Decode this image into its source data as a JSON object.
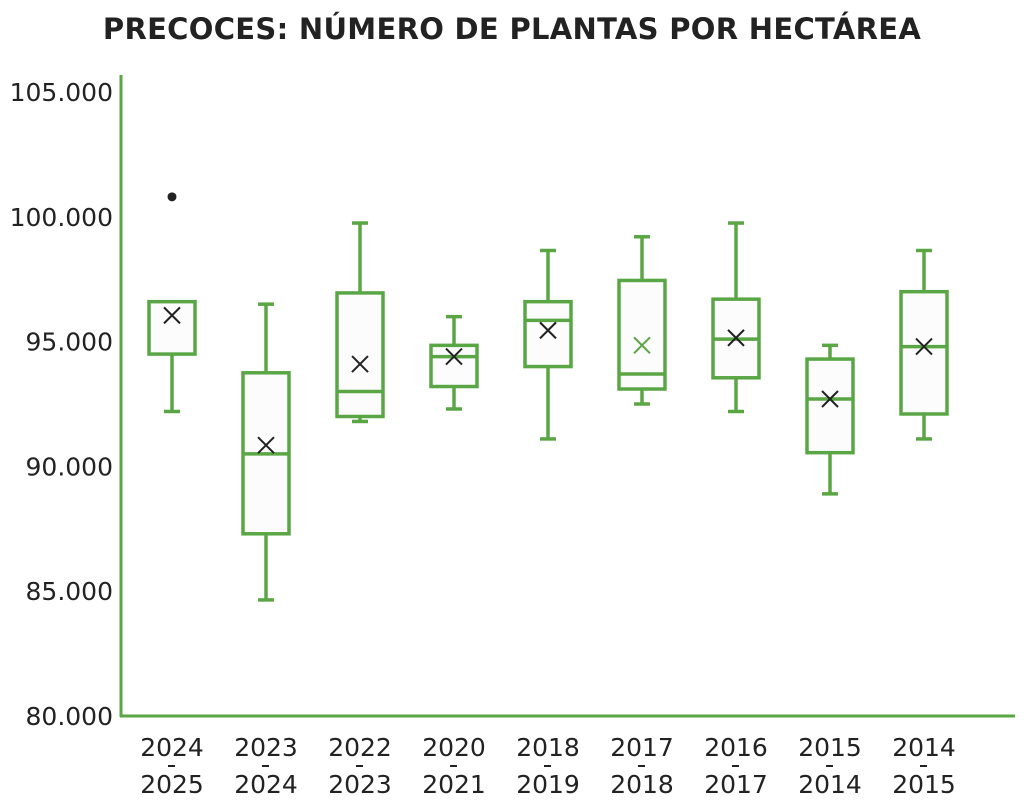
{
  "chart_data": {
    "type": "box",
    "title": "PRECOCES: NÚMERO DE PLANTAS POR HECTÁREA",
    "xlabel": "",
    "ylabel": "",
    "ylim": [
      80000,
      105000
    ],
    "yticks": [
      80000,
      85000,
      90000,
      95000,
      100000,
      105000
    ],
    "ytick_labels": [
      "80.000",
      "85.000",
      "90.000",
      "95.000",
      "100.000",
      "105.000"
    ],
    "grid": false,
    "color": "#5aa645",
    "categories": [
      "2024-2025",
      "2023-2024",
      "2022-2023",
      "2020-2021",
      "2018-2019",
      "2017-2018",
      "2016-2017",
      "2015-2014",
      "2014-2015"
    ],
    "boxes": [
      {
        "min": 92200,
        "q1": 94500,
        "median": 96600,
        "q3": 96600,
        "max": 96600,
        "mean": 96050,
        "outliers": [
          100800
        ]
      },
      {
        "min": 84650,
        "q1": 87300,
        "median": 90500,
        "q3": 93750,
        "max": 96500,
        "mean": 90850,
        "outliers": []
      },
      {
        "min": 91800,
        "q1": 92000,
        "median": 93000,
        "q3": 96950,
        "max": 99750,
        "mean": 94100,
        "outliers": []
      },
      {
        "min": 92300,
        "q1": 93200,
        "median": 94400,
        "q3": 94850,
        "max": 96000,
        "mean": 94400,
        "outliers": []
      },
      {
        "min": 91100,
        "q1": 94000,
        "median": 95850,
        "q3": 96600,
        "max": 98650,
        "mean": 95450,
        "outliers": []
      },
      {
        "min": 92500,
        "q1": 93100,
        "median": 93700,
        "q3": 97450,
        "max": 99200,
        "mean": 94850,
        "outliers": []
      },
      {
        "min": 92200,
        "q1": 93550,
        "median": 95100,
        "q3": 96700,
        "max": 99750,
        "mean": 95150,
        "outliers": []
      },
      {
        "min": 88900,
        "q1": 90550,
        "median": 92700,
        "q3": 94300,
        "max": 94850,
        "mean": 92700,
        "outliers": []
      },
      {
        "min": 91100,
        "q1": 92100,
        "median": 94800,
        "q3": 97000,
        "max": 98650,
        "mean": 94800,
        "outliers": []
      }
    ]
  }
}
